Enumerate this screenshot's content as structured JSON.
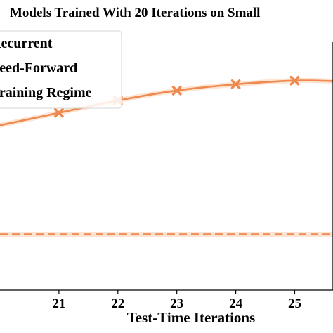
{
  "chart_data": {
    "type": "line",
    "title": "Models Trained With 20 Iterations on Small",
    "xlabel": "Test-Time Iterations",
    "ylabel": "",
    "xlim": [
      20.0,
      25.65
    ],
    "ylim": [
      0,
      100
    ],
    "x_ticks": [
      "21",
      "22",
      "23",
      "24",
      "25"
    ],
    "grid": false,
    "legend_position": "upper-left",
    "legend": [
      {
        "label": "Recurrent",
        "style": "solid-line"
      },
      {
        "label": "Feed-Forward",
        "style": "dashed-line"
      },
      {
        "label": "Training Regime",
        "style": "unknown"
      }
    ],
    "series": [
      {
        "name": "Recurrent",
        "x": [
          20,
          21,
          22,
          23,
          24,
          25,
          25.65
        ],
        "values": [
          66.5,
          71.5,
          76.5,
          80.5,
          83.0,
          84.5,
          84.3
        ],
        "markers_at": [
          21,
          22,
          23,
          24,
          25
        ],
        "band": 1.0,
        "color": "#ee8a4f",
        "band_color": "#fbd9c3"
      },
      {
        "name": "Feed-Forward",
        "x": [
          20,
          25.65
        ],
        "values": [
          22.5,
          22.5
        ],
        "band": 1.0,
        "color": "#ee8a4f",
        "band_color": "#fbd9c3"
      }
    ]
  }
}
